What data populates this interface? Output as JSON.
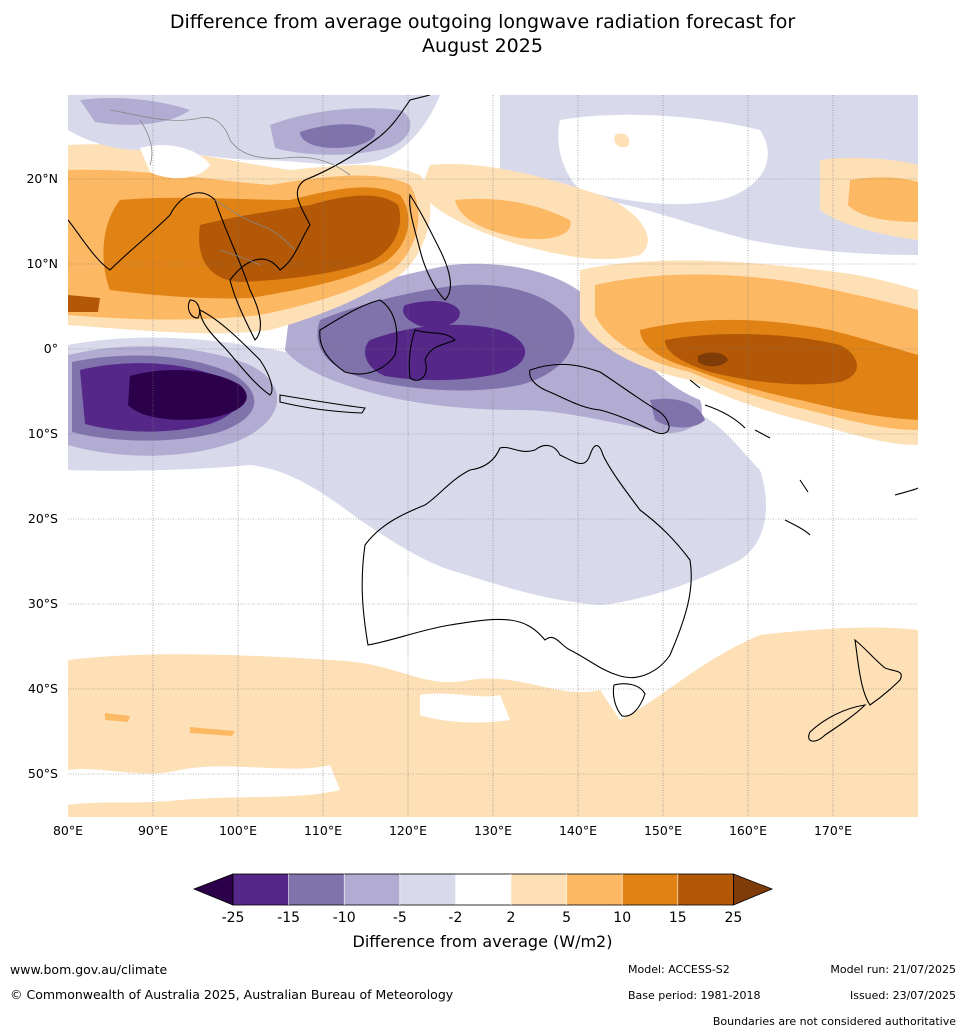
{
  "title": {
    "line1": "Difference from average outgoing longwave radiation forecast for",
    "line2": "August 2025"
  },
  "map": {
    "lon_labels": [
      "80°E",
      "90°E",
      "100°E",
      "110°E",
      "120°E",
      "130°E",
      "140°E",
      "150°E",
      "160°E",
      "170°E"
    ],
    "lat_labels": [
      "20°N",
      "10°N",
      "0°",
      "10°S",
      "20°S",
      "30°S",
      "40°S",
      "50°S"
    ]
  },
  "colorbar": {
    "tick_labels": [
      "-25",
      "-15",
      "-10",
      "-5",
      "-2",
      "2",
      "5",
      "10",
      "15",
      "25"
    ],
    "colors": [
      "#2d004b",
      "#542788",
      "#8073ac",
      "#b2abd2",
      "#d8daeb",
      "#ffffff",
      "#fee0b6",
      "#fdb863",
      "#e08214",
      "#b35806",
      "#7f3b08"
    ],
    "label": "Difference from average (W/m2)"
  },
  "footer": {
    "website": "www.bom.gov.au/climate",
    "copyright": "© Commonwealth of Australia 2025, Australian Bureau of Meteorology",
    "model": "Model: ACCESS-S2",
    "base_period": "Base period: 1981-2018",
    "model_run": "Model run: 21/07/2025",
    "issued": "Issued: 23/07/2025",
    "disclaimer": "Boundaries are not considered authoritative"
  }
}
